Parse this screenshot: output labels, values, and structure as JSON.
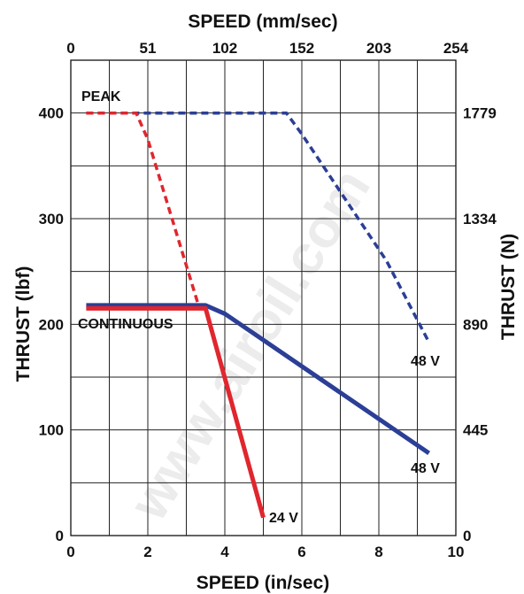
{
  "chart_data": {
    "type": "line",
    "title": "",
    "xlabel": "SPEED (in/sec)",
    "ylabel": "THRUST (lbf)",
    "x2label": "SPEED (mm/sec)",
    "y2label": "THRUST (N)",
    "xlim": [
      0,
      10
    ],
    "ylim": [
      0,
      450
    ],
    "x_ticks": [
      0,
      2,
      4,
      6,
      8,
      10
    ],
    "y_ticks": [
      0,
      100,
      200,
      300,
      400
    ],
    "x2_ticks": [
      0,
      51,
      102,
      152,
      203,
      254
    ],
    "y2_ticks": [
      0,
      445,
      890,
      1334,
      1779
    ],
    "grid": true,
    "series": [
      {
        "name": "",
        "color": "#2b3f97",
        "style": "dashed",
        "x": [
          0.4,
          5.6,
          6.0,
          8.2,
          9.3
        ],
        "y": [
          400,
          400,
          380,
          260,
          183
        ]
      },
      {
        "name": "",
        "color": "#e0262e",
        "style": "dashed",
        "x": [
          0.4,
          1.7,
          2.0,
          3.3
        ],
        "y": [
          400,
          400,
          375,
          220
        ]
      },
      {
        "name": "",
        "color": "#2b3f97",
        "style": "solid",
        "x": [
          0.4,
          3.5,
          4.0,
          9.3
        ],
        "y": [
          218,
          218,
          210,
          78
        ]
      },
      {
        "name": "",
        "color": "#e0262e",
        "style": "solid",
        "x": [
          0.4,
          3.5,
          5.0
        ],
        "y": [
          215,
          215,
          17
        ]
      }
    ],
    "annotations": {
      "peak": "PEAK",
      "continuous": "CONTINUOUS",
      "peak_48v": "48 V",
      "cont_48v": "48 V",
      "cont_24v": "24 V"
    },
    "watermark": "www.airoil.com"
  }
}
